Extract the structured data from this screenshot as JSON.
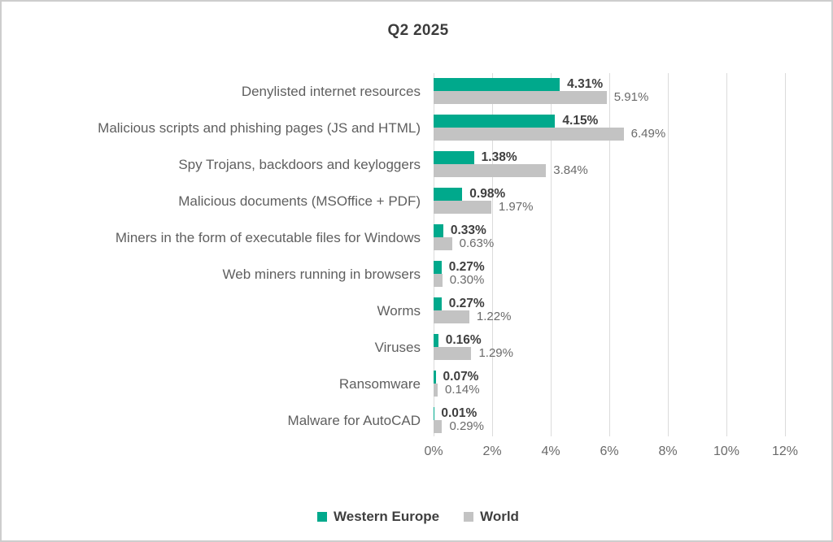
{
  "title": "Q2 2025",
  "chart_data": {
    "type": "bar",
    "orientation": "horizontal",
    "title": "Q2 2025",
    "categories": [
      "Denylisted internet resources",
      "Malicious scripts and phishing pages (JS and HTML)",
      "Spy Trojans, backdoors and keyloggers",
      "Malicious documents (MSOffice + PDF)",
      "Miners in the form of executable files for Windows",
      "Web miners running in browsers",
      "Worms",
      "Viruses",
      "Ransomware",
      "Malware for AutoCAD"
    ],
    "series": [
      {
        "name": "Western Europe",
        "color": "#00a98c",
        "values": [
          4.31,
          4.15,
          1.38,
          0.98,
          0.33,
          0.27,
          0.27,
          0.16,
          0.07,
          0.01
        ],
        "labels": [
          "4.31%",
          "4.15%",
          "1.38%",
          "0.98%",
          "0.33%",
          "0.27%",
          "0.27%",
          "0.16%",
          "0.07%",
          "0.01%"
        ]
      },
      {
        "name": "World",
        "color": "#c3c3c3",
        "values": [
          5.91,
          6.49,
          3.84,
          1.97,
          0.63,
          0.3,
          1.22,
          1.29,
          0.14,
          0.29
        ],
        "labels": [
          "5.91%",
          "6.49%",
          "3.84%",
          "1.97%",
          "0.63%",
          "0.30%",
          "1.22%",
          "1.29%",
          "0.14%",
          "0.29%"
        ]
      }
    ],
    "x_ticks": [
      "0%",
      "2%",
      "4%",
      "6%",
      "8%",
      "10%",
      "12%"
    ],
    "xlim": [
      0,
      12
    ],
    "grid": "vertical-only",
    "gridline_color": "#dbdbdb",
    "legend_position": "bottom"
  }
}
